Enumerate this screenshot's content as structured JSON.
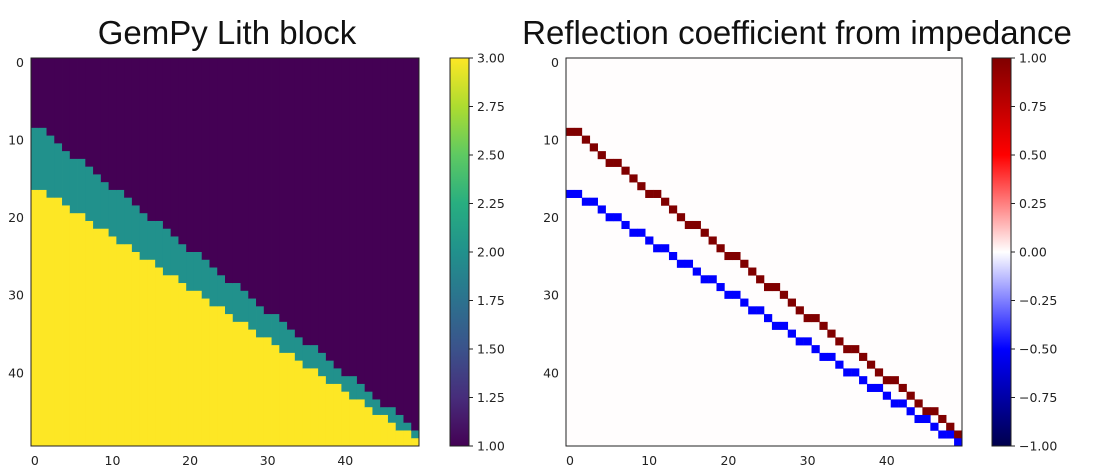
{
  "chart_data": [
    {
      "type": "heatmap",
      "title": "GemPy Lith block",
      "colormap": "viridis",
      "grid": false,
      "xlim": [
        0,
        49
      ],
      "ylim": [
        49,
        0
      ],
      "xticks": [
        "0",
        "10",
        "20",
        "30",
        "40"
      ],
      "yticks": [
        "0",
        "10",
        "20",
        "30",
        "40"
      ],
      "description_values": "lith value per cell: 1 above the upper boundary, 2 in the band, 3 below",
      "boundaries": {
        "upper_row_at_col0": 8.5,
        "upper_slope": 0.8,
        "lower_row_at_col0": 16.5,
        "lower_slope": 0.66
      },
      "colorbar": {
        "min": 1.0,
        "max": 3.0,
        "ticks": [
          "1.00",
          "1.25",
          "1.50",
          "1.75",
          "2.00",
          "2.25",
          "2.50",
          "2.75",
          "3.00"
        ]
      }
    },
    {
      "type": "heatmap",
      "title": "Reflection coefficient from impedance",
      "colormap": "seismic",
      "grid": false,
      "xlim": [
        0,
        49
      ],
      "ylim": [
        49,
        0
      ],
      "xticks": [
        "0",
        "10",
        "20",
        "30",
        "40"
      ],
      "yticks": [
        "0",
        "10",
        "20",
        "30",
        "40"
      ],
      "description_values": "+1 at the upper boundary, -1 at the lower boundary, 0 elsewhere",
      "colorbar": {
        "min": -1.0,
        "max": 1.0,
        "ticks": [
          "1.00",
          "0.75",
          "0.50",
          "0.25",
          "0.00",
          "−0.25",
          "−0.50",
          "−0.75",
          "−1.00"
        ]
      }
    }
  ],
  "colors": {
    "lith_1": "#440154",
    "lith_2": "#21918c",
    "lith_3": "#fde725",
    "refl_pos": "#800000",
    "refl_neg": "#0000ff",
    "refl_zero": "#fffdfd"
  }
}
